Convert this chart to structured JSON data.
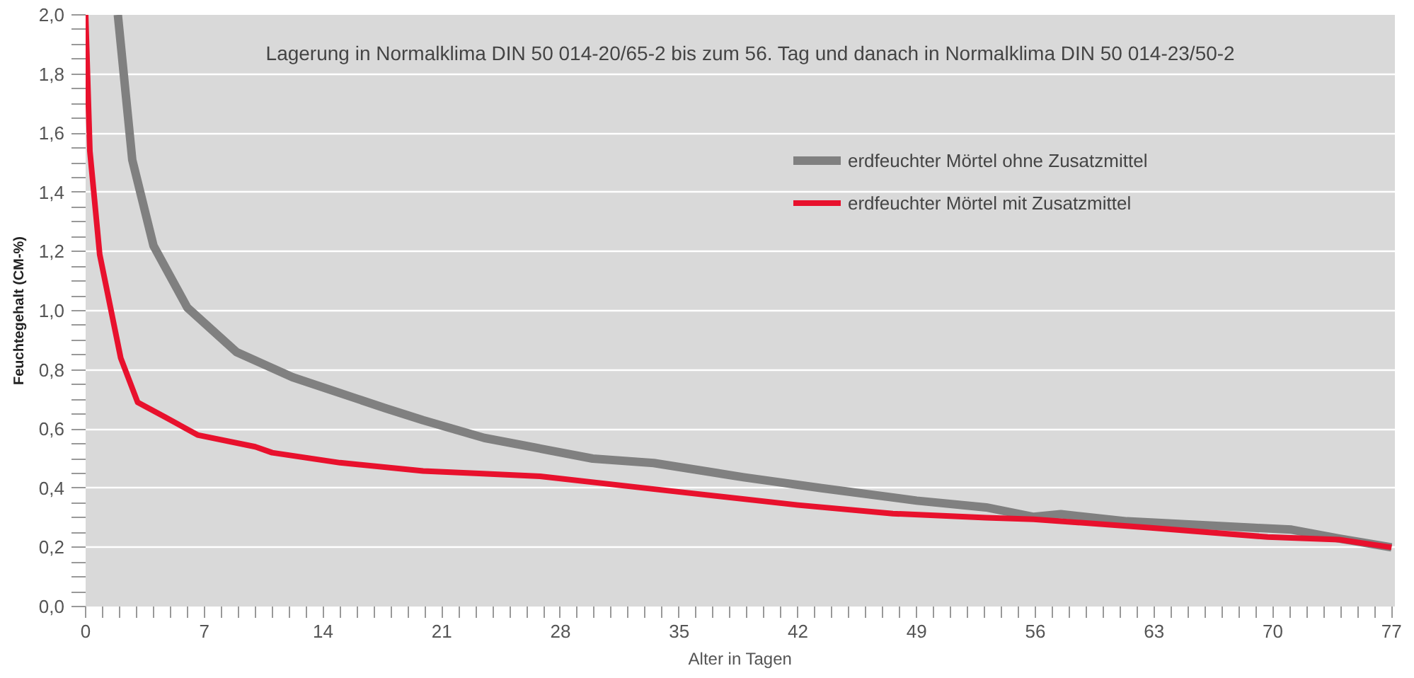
{
  "chart_data": {
    "type": "line",
    "xlabel": "Alter in Tagen",
    "ylabel": "Feuchtegehalt (CM-%)",
    "annotations": [
      "Lagerung in Normalklima DIN 50 014-20/65-2 bis zum 56. Tag und danach in Normalklima DIN 50 014-23/50-2"
    ],
    "xlim": [
      0,
      77.2
    ],
    "ylim": [
      0,
      2.0
    ],
    "xticks": [
      0,
      7,
      14,
      21,
      28,
      35,
      42,
      49,
      56,
      63,
      70,
      77
    ],
    "yticks": [
      {
        "value": 0,
        "label": "0,0"
      },
      {
        "value": 0.2,
        "label": "0,2"
      },
      {
        "value": 0.4,
        "label": "0,4"
      },
      {
        "value": 0.6,
        "label": "0,6"
      },
      {
        "value": 0.8,
        "label": "0,8"
      },
      {
        "value": 1.0,
        "label": "1,0"
      },
      {
        "value": 1.2,
        "label": "1,2"
      },
      {
        "value": 1.4,
        "label": "1,4"
      },
      {
        "value": 1.6,
        "label": "1,6"
      },
      {
        "value": 1.8,
        "label": "1,8"
      },
      {
        "value": 2.0,
        "label": "2,0"
      }
    ],
    "grid": "y",
    "legend": "top right",
    "line_style": "solid",
    "series": [
      {
        "name": "erdfeuchter Mörtel ohne Zusatzmittel",
        "color": "#808080",
        "x": [
          1.9,
          2.75,
          4,
          6,
          8.9,
          12.2,
          17.7,
          19.9,
          23.5,
          29.9,
          33.5,
          38.8,
          43.4,
          49,
          53.1,
          55.9,
          57.5,
          61.4,
          68.9,
          71.1,
          73.9,
          77
        ],
        "values": [
          2.0,
          1.51,
          1.22,
          1.01,
          0.86,
          0.775,
          0.67,
          0.63,
          0.57,
          0.5,
          0.485,
          0.437,
          0.4,
          0.358,
          0.335,
          0.303,
          0.312,
          0.288,
          0.266,
          0.26,
          0.23,
          0.2
        ]
      },
      {
        "name": "erdfeuchter Mörtel mit Zusatzmittel",
        "color": "#e8112d",
        "x": [
          0,
          0.25,
          0.83,
          2.07,
          3.07,
          4.7,
          6.6,
          10,
          11,
          15,
          19.9,
          23.2,
          26.8,
          33.8,
          42,
          47.6,
          53.1,
          55.9,
          62.8,
          69.7,
          73.9,
          77
        ],
        "values": [
          2.0,
          1.54,
          1.19,
          0.84,
          0.69,
          0.64,
          0.58,
          0.54,
          0.52,
          0.486,
          0.458,
          0.45,
          0.44,
          0.395,
          0.343,
          0.314,
          0.3,
          0.295,
          0.266,
          0.235,
          0.226,
          0.2
        ]
      }
    ]
  }
}
